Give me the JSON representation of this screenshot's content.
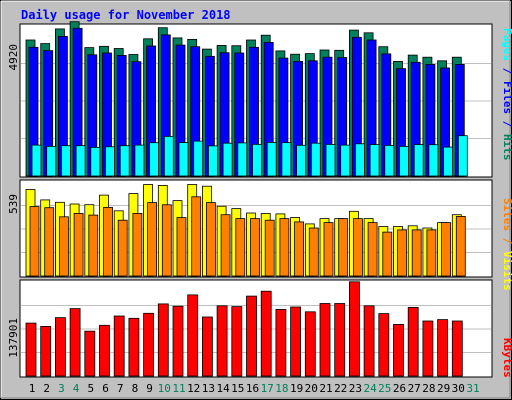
{
  "title": "Daily usage for November 2018",
  "colors": {
    "background": "#c0c0c0",
    "panel": "#ffffff",
    "hits": "#00805c",
    "files": "#0000ff",
    "pages": "#00ffff",
    "visits": "#ffff00",
    "sites": "#ff8000",
    "kbytes": "#ff0000",
    "weekday_label": "#000000",
    "weekend_label": "#00805c"
  },
  "chart_data": [
    {
      "type": "bar",
      "panel": "top",
      "ymax_label": "4920",
      "ylim": [
        0,
        4920
      ],
      "categories": [
        "1",
        "2",
        "3",
        "4",
        "5",
        "6",
        "7",
        "8",
        "9",
        "10",
        "11",
        "12",
        "13",
        "14",
        "15",
        "16",
        "17",
        "18",
        "19",
        "20",
        "21",
        "22",
        "23",
        "24",
        "25",
        "26",
        "27",
        "28",
        "29",
        "30",
        "31"
      ],
      "weekend_days": [
        3,
        4,
        10,
        11,
        17,
        18,
        24,
        25,
        31
      ],
      "legend": [
        "Pages",
        "Files",
        "Hits"
      ],
      "series": [
        {
          "name": "Hits",
          "color_key": "hits",
          "values": [
            4520,
            4400,
            4890,
            5130,
            4270,
            4310,
            4240,
            4040,
            4560,
            4930,
            4590,
            4540,
            4220,
            4340,
            4330,
            4520,
            4680,
            4160,
            4050,
            4070,
            4190,
            4180,
            4850,
            4760,
            4300,
            3810,
            4020,
            3950,
            3830,
            3950,
            null
          ]
        },
        {
          "name": "Files",
          "color_key": "files",
          "values": [
            4280,
            4170,
            4640,
            4910,
            4030,
            4090,
            4010,
            3800,
            4320,
            4690,
            4350,
            4300,
            3980,
            4100,
            4090,
            4280,
            4440,
            3920,
            3810,
            3830,
            3950,
            3940,
            4610,
            4520,
            4060,
            3570,
            3780,
            3710,
            3590,
            3710,
            null
          ]
        },
        {
          "name": "Pages",
          "color_key": "pages",
          "values": [
            1028,
            983,
            1006,
            1006,
            950,
            972,
            1006,
            1028,
            1106,
            1317,
            1111,
            1161,
            1001,
            1089,
            1100,
            1050,
            1117,
            1111,
            1022,
            1089,
            1050,
            1028,
            1072,
            1044,
            1017,
            983,
            1044,
            1039,
            961,
            1339,
            null
          ]
        }
      ]
    },
    {
      "type": "bar",
      "panel": "middle",
      "ymax_label": "539",
      "ylim": [
        0,
        539
      ],
      "categories": [
        "1",
        "2",
        "3",
        "4",
        "5",
        "6",
        "7",
        "8",
        "9",
        "10",
        "11",
        "12",
        "13",
        "14",
        "15",
        "16",
        "17",
        "18",
        "19",
        "20",
        "21",
        "22",
        "23",
        "24",
        "25",
        "26",
        "27",
        "28",
        "29",
        "30",
        "31"
      ],
      "legend": [
        "Sites",
        "Visits"
      ],
      "series": [
        {
          "name": "Visits",
          "color_key": "visits",
          "values": [
            507,
            446,
            432,
            422,
            418,
            474,
            382,
            483,
            536,
            531,
            442,
            536,
            526,
            409,
            395,
            369,
            366,
            364,
            343,
            305,
            336,
            336,
            379,
            336,
            290,
            290,
            294,
            281,
            313,
            359,
            null
          ]
        },
        {
          "name": "Sites",
          "color_key": "sites",
          "values": [
            407,
            400,
            347,
            367,
            357,
            402,
            327,
            367,
            430,
            417,
            342,
            464,
            430,
            359,
            336,
            336,
            327,
            336,
            317,
            281,
            313,
            336,
            336,
            313,
            257,
            270,
            270,
            270,
            313,
            349,
            null
          ]
        }
      ]
    },
    {
      "type": "bar",
      "panel": "bottom",
      "ymax_label": "137901",
      "ylim": [
        0,
        137901
      ],
      "categories": [
        "1",
        "2",
        "3",
        "4",
        "5",
        "6",
        "7",
        "8",
        "9",
        "10",
        "11",
        "12",
        "13",
        "14",
        "15",
        "16",
        "17",
        "18",
        "19",
        "20",
        "21",
        "22",
        "23",
        "24",
        "25",
        "26",
        "27",
        "28",
        "29",
        "30",
        "31"
      ],
      "legend": [
        "KBytes"
      ],
      "series": [
        {
          "name": "KBytes",
          "color_key": "kbytes",
          "values": [
            79300,
            74300,
            87500,
            101000,
            67200,
            76000,
            90000,
            86500,
            94000,
            108000,
            104600,
            121500,
            88500,
            105200,
            104000,
            119800,
            127100,
            99800,
            103400,
            96300,
            108700,
            108700,
            141200,
            105200,
            93600,
            77400,
            102800,
            82500,
            84600,
            82500,
            null
          ]
        }
      ]
    }
  ],
  "side_labels": {
    "top": [
      {
        "text": "Pages",
        "color_key": "pages"
      },
      {
        "text": " / ",
        "color_key": "files"
      },
      {
        "text": "Files",
        "color_key": "files"
      },
      {
        "text": " / ",
        "color_key": "files"
      },
      {
        "text": "Hits",
        "color_key": "hits"
      }
    ],
    "middle": [
      {
        "text": "Sites",
        "color_key": "sites"
      },
      {
        "text": " / ",
        "color_key": "sites"
      },
      {
        "text": "Visits",
        "color_key": "visits"
      }
    ],
    "bottom": [
      {
        "text": "KBytes",
        "color_key": "kbytes"
      }
    ]
  }
}
